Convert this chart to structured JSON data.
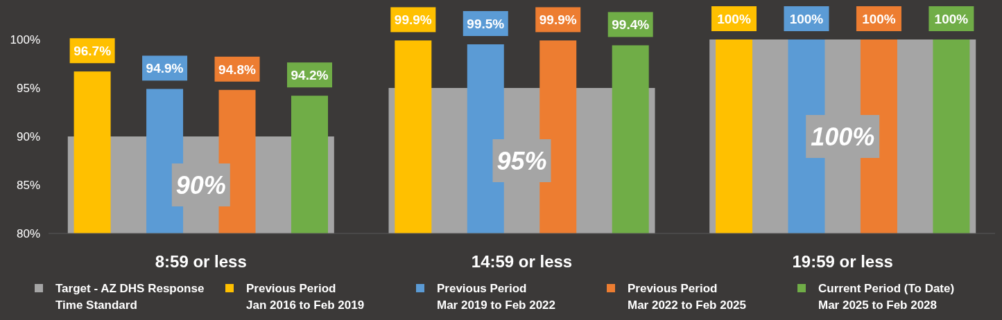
{
  "chart_data": {
    "type": "bar",
    "categories": [
      "8:59 or less",
      "14:59 or less",
      "19:59 or less"
    ],
    "series": [
      {
        "name": "Target - AZ DHS Response Time Standard",
        "color": "#a5a5a5",
        "values": [
          90,
          95,
          100
        ],
        "value_labels": [
          "90%",
          "95%",
          "100%"
        ]
      },
      {
        "name": "Previous Period Jan 2016 to Feb 2019",
        "color": "#ffc000",
        "values": [
          96.7,
          99.9,
          100
        ],
        "value_labels": [
          "96.7%",
          "99.9%",
          "100%"
        ]
      },
      {
        "name": "Previous Period Mar 2019 to Feb 2022",
        "color": "#5b9bd5",
        "values": [
          94.9,
          99.5,
          100
        ],
        "value_labels": [
          "94.9%",
          "99.5%",
          "100%"
        ]
      },
      {
        "name": "Previous Period Mar 2022 to Feb 2025",
        "color": "#ed7d31",
        "values": [
          94.8,
          99.9,
          100
        ],
        "value_labels": [
          "94.8%",
          "99.9%",
          "100%"
        ]
      },
      {
        "name": "Current Period (To Date) Mar 2025 to Feb 2028",
        "color": "#70ad47",
        "values": [
          94.2,
          99.4,
          100
        ],
        "value_labels": [
          "94.2%",
          "99.4%",
          "100%"
        ]
      }
    ],
    "ylim": [
      80,
      100
    ],
    "yticks": [
      {
        "value": 80,
        "label": "80%"
      },
      {
        "value": 85,
        "label": "85%"
      },
      {
        "value": 90,
        "label": "90%"
      },
      {
        "value": 95,
        "label": "95%"
      },
      {
        "value": 100,
        "label": "100%"
      }
    ],
    "grid": false,
    "legend": "bottom"
  }
}
